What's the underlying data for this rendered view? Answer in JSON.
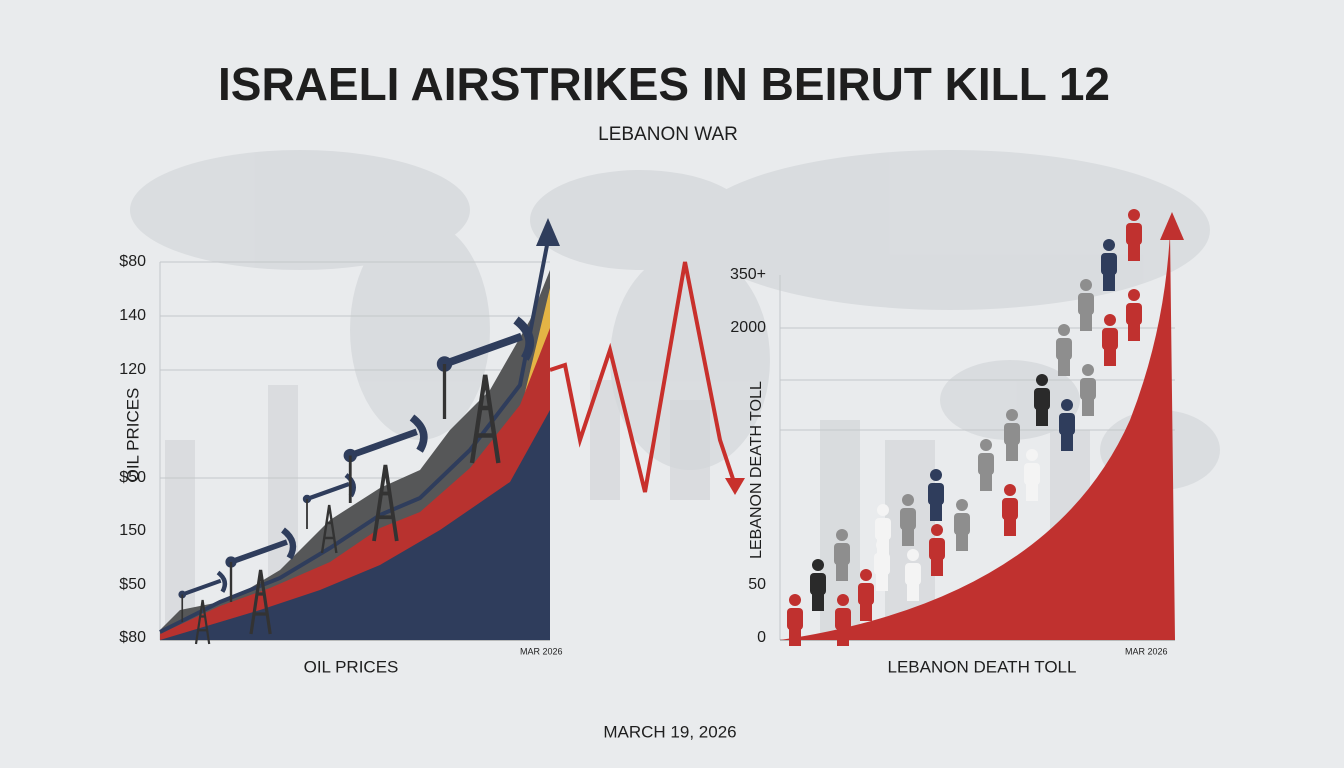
{
  "header": {
    "title": "ISRAELI AIRSTRIKES IN BEIRUT KILL 12",
    "subtitle": "LEBANON WAR"
  },
  "left_panel": {
    "axis_labels": [
      "$80",
      "140",
      "120",
      "$50",
      "150",
      "$50",
      "$80"
    ],
    "y_title": "OIL PRICES",
    "date": "MAR 2026",
    "caption": "OIL PRICES"
  },
  "right_panel": {
    "axis_labels": [
      "350+",
      "2000",
      "50",
      "0"
    ],
    "y_title": "LEBANON DEATH TOLL",
    "date": "MAR 2026",
    "caption": "LEBANON DEATH TOLL"
  },
  "footer": {
    "date": "MARCH 19, 2026"
  }
}
